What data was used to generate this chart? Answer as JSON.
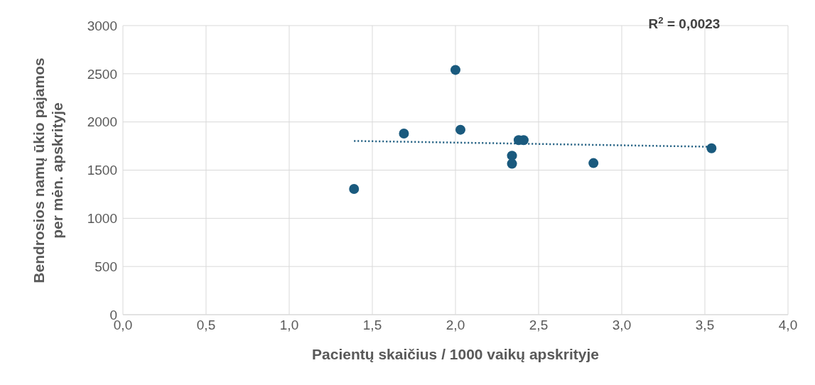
{
  "chart_data": {
    "type": "scatter",
    "xlabel": "Pacientų skaičius / 1000 vaikų apskrityje",
    "ylabel": "Bendrosios namų ūkio pajamos per mėn. apskrityje",
    "xlim": [
      0,
      4
    ],
    "xticks": [
      {
        "value": 0,
        "label": "0,0"
      },
      {
        "value": 0.5,
        "label": "0,5"
      },
      {
        "value": 1,
        "label": "1,0"
      },
      {
        "value": 1.5,
        "label": "1,5"
      },
      {
        "value": 2,
        "label": "2,0"
      },
      {
        "value": 2.5,
        "label": "2,5"
      },
      {
        "value": 3,
        "label": "3,0"
      },
      {
        "value": 3.5,
        "label": "3,5"
      },
      {
        "value": 4,
        "label": "4,0"
      }
    ],
    "ylim": [
      0,
      3000
    ],
    "yticks": [
      0,
      500,
      1000,
      1500,
      2000,
      2500,
      3000
    ],
    "grid": true,
    "marker": "circle",
    "series": [
      {
        "type": "scatter",
        "color": "#1a5a7e",
        "x": [
          1.39,
          1.69,
          2.0,
          2.03,
          2.34,
          2.34,
          2.38,
          2.41,
          2.83,
          3.54
        ],
        "values": [
          1305,
          1880,
          2540,
          1919,
          1650,
          1566,
          1811,
          1811,
          1573,
          1727
        ]
      },
      {
        "type": "line",
        "color": "#1a5a7e",
        "line_style": "dotted",
        "marker": "none",
        "x": [
          1.39,
          3.55
        ],
        "values": [
          1803,
          1742
        ]
      }
    ],
    "annotations": [
      "R$^{2}$ = 0,0023"
    ]
  }
}
